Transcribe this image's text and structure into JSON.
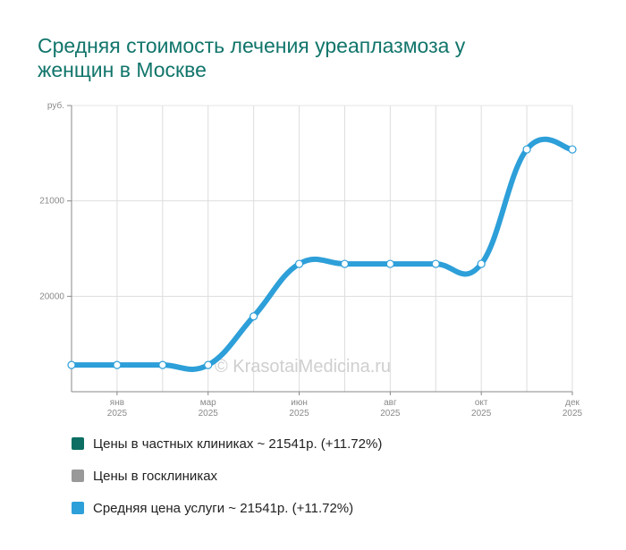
{
  "title": "Средняя стоимость лечения уреаплазмоза у женщин в Москве",
  "watermark": "© KrasotaiMedicina.ru",
  "legend": [
    {
      "label": "Цены в частных клиниках ~ 21541р. (+11.72%)",
      "color": "#0d6e63"
    },
    {
      "label": "Цены в госклиниках",
      "color": "#999999"
    },
    {
      "label": "Средняя цена услуги ~ 21541р. (+11.72%)",
      "color": "#2d9fd9"
    }
  ],
  "chart_data": {
    "type": "line",
    "title": "Средняя стоимость лечения уреаплазмоза у женщин в Москве",
    "y_unit": "руб.",
    "ylim": [
      19000,
      22000
    ],
    "yticks": [
      20000,
      21000
    ],
    "x_tick_labels": [
      {
        "month": "янв",
        "year": "2025"
      },
      {
        "month": "мар",
        "year": "2025"
      },
      {
        "month": "июн",
        "year": "2025"
      },
      {
        "month": "авг",
        "year": "2025"
      },
      {
        "month": "окт",
        "year": "2025"
      },
      {
        "month": "дек",
        "year": "2025"
      }
    ],
    "grid": true,
    "legend_position": "bottom",
    "series": [
      {
        "name": "Средняя цена услуги",
        "color": "#2d9fd9",
        "values": [
          19280,
          19280,
          19280,
          19280,
          19790,
          20340,
          20340,
          20340,
          20340,
          20340,
          21540,
          21540
        ]
      }
    ]
  }
}
